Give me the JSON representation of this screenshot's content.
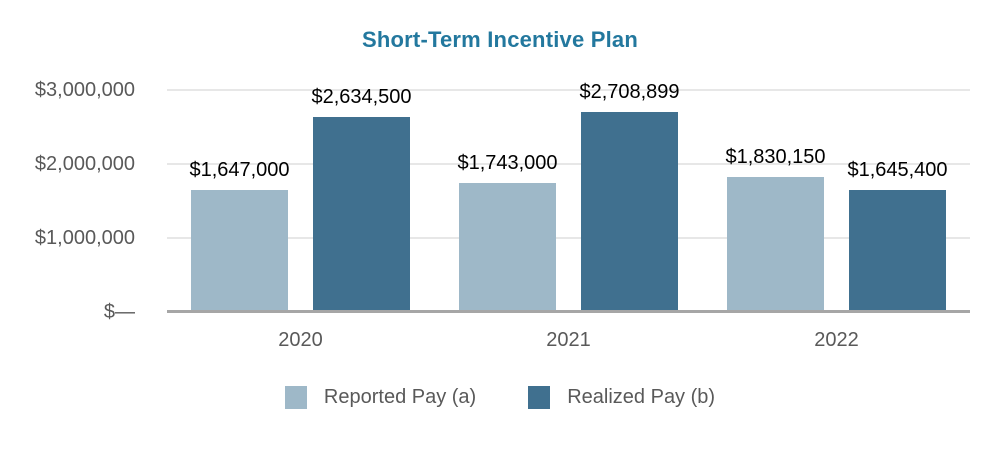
{
  "chart_data": {
    "type": "bar",
    "title": "Short-Term Incentive Plan",
    "categories": [
      "2020",
      "2021",
      "2022"
    ],
    "series": [
      {
        "name": "Reported Pay (a)",
        "color": "#9EB8C8",
        "values": [
          1647000,
          1743000,
          1830150
        ],
        "labels": [
          "$1,647,000",
          "$1,743,000",
          "$1,830,150"
        ]
      },
      {
        "name": "Realized Pay (b)",
        "color": "#40708F",
        "values": [
          2634500,
          2708899,
          1645400
        ],
        "labels": [
          "$2,634,500",
          "$2,708,899",
          "$1,645,400"
        ]
      }
    ],
    "y_ticks": [
      {
        "value": 0,
        "label": "$—"
      },
      {
        "value": 1000000,
        "label": "$1,000,000"
      },
      {
        "value": 2000000,
        "label": "$2,000,000"
      },
      {
        "value": 3000000,
        "label": "$3,000,000"
      }
    ],
    "ylim": [
      0,
      3000000
    ],
    "grid": true,
    "legend_position": "bottom",
    "colors": {
      "title": "#23789E",
      "axis_text": "#595959",
      "bar_value_label": "#000000",
      "gridline": "#E7E7E7",
      "baseline": "#A6A6A6",
      "background": "#FFFFFF"
    }
  }
}
